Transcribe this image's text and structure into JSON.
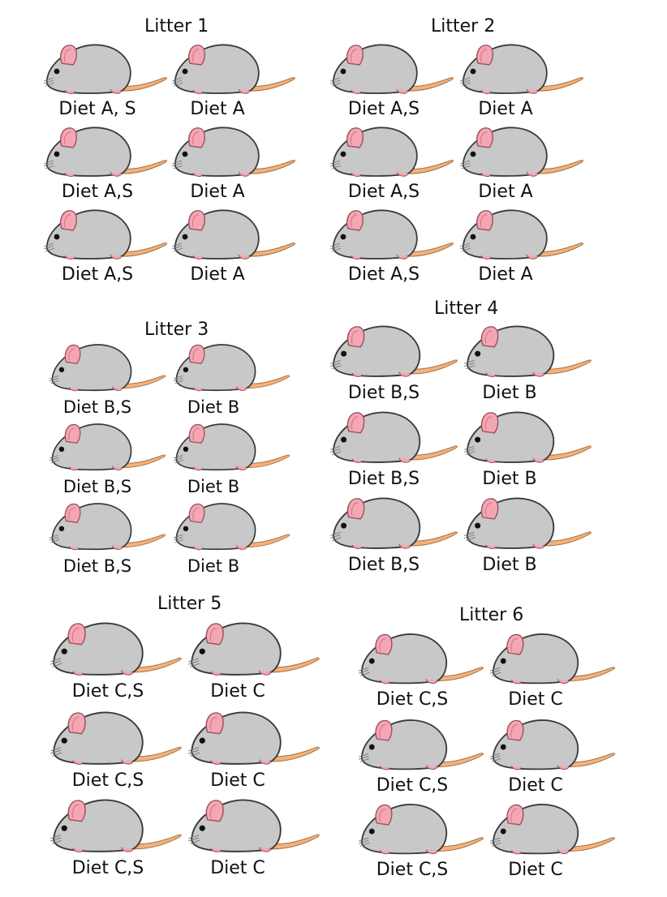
{
  "colors": {
    "body": "#c8c8c8",
    "outline": "#3a3a3a",
    "ear": "#f4a7b3",
    "tail": "#f2b27e",
    "eye": "#111111",
    "background": "#ffffff"
  },
  "litters": [
    {
      "title": "Litter 1",
      "mice": [
        {
          "label": "Diet A, S",
          "icon": "mouse-icon"
        },
        {
          "label": "Diet A",
          "icon": "mouse-icon"
        },
        {
          "label": "Diet A,S",
          "icon": "mouse-icon"
        },
        {
          "label": "Diet A",
          "icon": "mouse-icon"
        },
        {
          "label": "Diet A,S",
          "icon": "mouse-icon"
        },
        {
          "label": "Diet A",
          "icon": "mouse-icon"
        }
      ]
    },
    {
      "title": "Litter 2",
      "mice": [
        {
          "label": "Diet A,S",
          "icon": "mouse-icon"
        },
        {
          "label": "Diet A",
          "icon": "mouse-icon"
        },
        {
          "label": "Diet A,S",
          "icon": "mouse-icon"
        },
        {
          "label": "Diet A",
          "icon": "mouse-icon"
        },
        {
          "label": "Diet A,S",
          "icon": "mouse-icon"
        },
        {
          "label": "Diet A",
          "icon": "mouse-icon"
        }
      ]
    },
    {
      "title": "Litter 3",
      "mice": [
        {
          "label": "Diet B,S",
          "icon": "mouse-icon"
        },
        {
          "label": "Diet B",
          "icon": "mouse-icon"
        },
        {
          "label": "Diet B,S",
          "icon": "mouse-icon"
        },
        {
          "label": "Diet B",
          "icon": "mouse-icon"
        },
        {
          "label": "Diet B,S",
          "icon": "mouse-icon"
        },
        {
          "label": "Diet B",
          "icon": "mouse-icon"
        }
      ]
    },
    {
      "title": "Litter 4",
      "mice": [
        {
          "label": "Diet B,S",
          "icon": "mouse-icon"
        },
        {
          "label": "Diet B",
          "icon": "mouse-icon"
        },
        {
          "label": "Diet B,S",
          "icon": "mouse-icon"
        },
        {
          "label": "Diet B",
          "icon": "mouse-icon"
        },
        {
          "label": "Diet B,S",
          "icon": "mouse-icon"
        },
        {
          "label": "Diet B",
          "icon": "mouse-icon"
        }
      ]
    },
    {
      "title": "Litter 5",
      "mice": [
        {
          "label": "Diet C,S",
          "icon": "mouse-icon"
        },
        {
          "label": "Diet C",
          "icon": "mouse-icon"
        },
        {
          "label": "Diet C,S",
          "icon": "mouse-icon"
        },
        {
          "label": "Diet C",
          "icon": "mouse-icon"
        },
        {
          "label": "Diet C,S",
          "icon": "mouse-icon"
        },
        {
          "label": "Diet C",
          "icon": "mouse-icon"
        }
      ]
    },
    {
      "title": "Litter 6",
      "mice": [
        {
          "label": "Diet C,S",
          "icon": "mouse-icon"
        },
        {
          "label": "Diet C",
          "icon": "mouse-icon"
        },
        {
          "label": "Diet C,S",
          "icon": "mouse-icon"
        },
        {
          "label": "Diet C",
          "icon": "mouse-icon"
        },
        {
          "label": "Diet C,S",
          "icon": "mouse-icon"
        },
        {
          "label": "Diet C",
          "icon": "mouse-icon"
        }
      ]
    }
  ]
}
